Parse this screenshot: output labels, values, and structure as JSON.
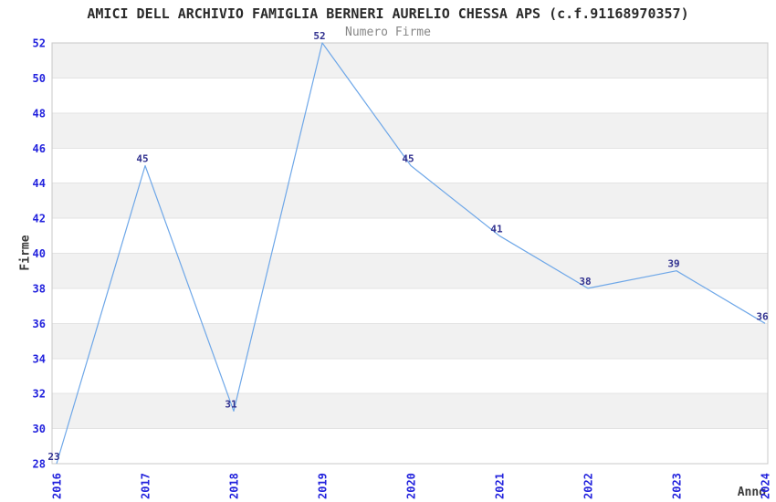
{
  "chart_data": {
    "type": "line",
    "title": "AMICI DELL ARCHIVIO FAMIGLIA BERNERI AURELIO CHESSA APS (c.f.91168970357)",
    "subtitle": "Numero Firme",
    "xlabel": "Anno",
    "ylabel": "Firme",
    "categories": [
      "2016",
      "2017",
      "2018",
      "2019",
      "2020",
      "2021",
      "2022",
      "2023",
      "2024"
    ],
    "values": [
      23,
      45,
      31,
      52,
      45,
      41,
      38,
      39,
      36
    ],
    "ylim": [
      28,
      52
    ],
    "ytick_step": 2,
    "yticks": [
      28,
      30,
      32,
      34,
      36,
      38,
      40,
      42,
      44,
      46,
      48,
      50,
      52
    ],
    "grid": "horizontal-alternating-bands",
    "legend": "none",
    "note_first_point_clipped_below_axis": true,
    "colors": {
      "line": "#6ea7e8",
      "tick_label": "#2222dd",
      "value_label": "#31318f",
      "band": "#f1f1f1",
      "grid_line": "#e3e3e3",
      "plot_border": "#c8c8c8",
      "title": "#2a2a2a",
      "subtitle": "#878787",
      "axis_label": "#3a3a3a",
      "background": "#ffffff"
    }
  }
}
